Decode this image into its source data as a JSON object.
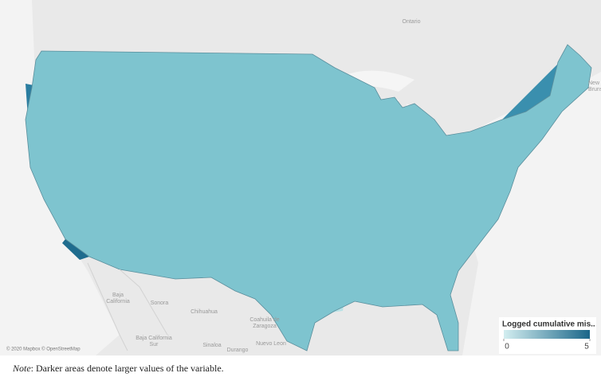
{
  "map": {
    "places": [
      {
        "lines": [
          "Ontario"
        ]
      },
      {
        "lines": [
          "New",
          "Brunsw"
        ]
      },
      {
        "lines": [
          "Baja",
          "California"
        ]
      },
      {
        "lines": [
          "Sonora"
        ]
      },
      {
        "lines": [
          "Chihuahua"
        ]
      },
      {
        "lines": [
          "Coahuila de",
          "Zaragoza"
        ]
      },
      {
        "lines": [
          "Baja California",
          "Sur"
        ]
      },
      {
        "lines": [
          "Sinaloa"
        ]
      },
      {
        "lines": [
          "Durango"
        ]
      },
      {
        "lines": [
          "Nuevo Leon"
        ]
      }
    ],
    "attribution": "© 2020 Mapbox © OpenStreetMap",
    "legend": {
      "title": "Logged cumulative mis..",
      "colors": [
        "#d3eef0",
        "#1a6689"
      ],
      "range": [
        0,
        5
      ],
      "ticks": [
        0,
        5
      ]
    }
  },
  "note": {
    "label": "Note",
    "text": ": Darker areas denote larger values of the variable."
  }
}
